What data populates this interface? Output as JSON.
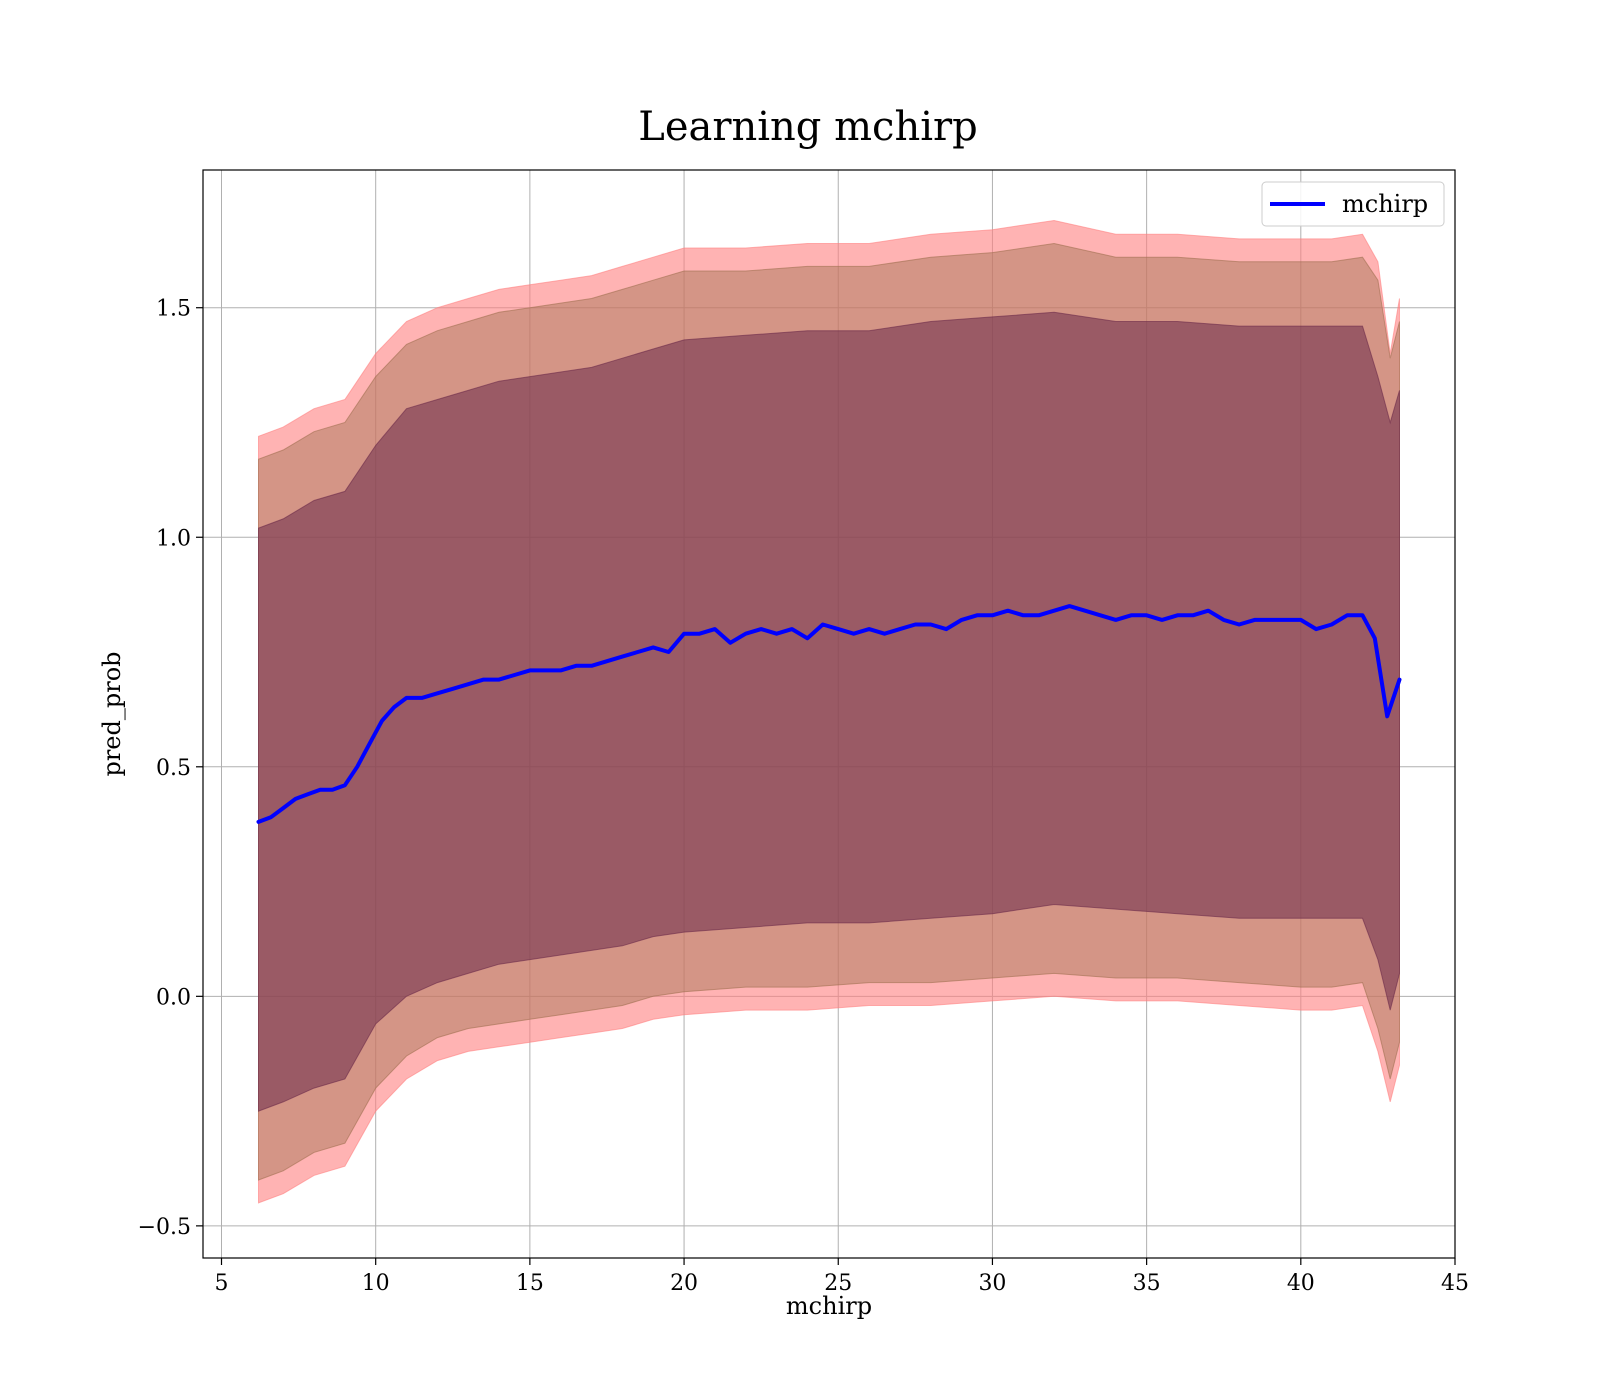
{
  "chart_data": {
    "type": "line",
    "title": "Learning mchirp",
    "xlabel": "mchirp",
    "ylabel": "pred_prob",
    "xlim": [
      4.4,
      45
    ],
    "ylim": [
      -0.57,
      1.8
    ],
    "xticks": [
      5,
      10,
      15,
      20,
      25,
      30,
      35,
      40,
      45
    ],
    "xtick_labels": [
      "5",
      "10",
      "15",
      "20",
      "25",
      "30",
      "35",
      "40",
      "45"
    ],
    "yticks": [
      -0.5,
      0.0,
      0.5,
      1.0,
      1.5
    ],
    "ytick_labels": [
      "−0.5",
      "0.0",
      "0.5",
      "1.0",
      "1.5"
    ],
    "grid": true,
    "legend": {
      "position": "upper right",
      "entries": [
        "mchirp"
      ]
    },
    "series": [
      {
        "name": "mchirp",
        "color": "#0000ff",
        "x": [
          6.2,
          6.6,
          7.0,
          7.4,
          7.8,
          8.2,
          8.6,
          9.0,
          9.4,
          9.8,
          10.2,
          10.6,
          11.0,
          11.5,
          12.0,
          12.5,
          13.0,
          13.5,
          14.0,
          14.5,
          15.0,
          15.5,
          16.0,
          16.5,
          17.0,
          17.5,
          18.0,
          18.5,
          19.0,
          19.5,
          20.0,
          20.5,
          21.0,
          21.5,
          22.0,
          22.5,
          23.0,
          23.5,
          24.0,
          24.5,
          25.0,
          25.5,
          26.0,
          26.5,
          27.0,
          27.5,
          28.0,
          28.5,
          29.0,
          29.5,
          30.0,
          30.5,
          31.0,
          31.5,
          32.0,
          32.5,
          33.0,
          33.5,
          34.0,
          34.5,
          35.0,
          35.5,
          36.0,
          36.5,
          37.0,
          37.5,
          38.0,
          38.5,
          39.0,
          39.5,
          40.0,
          40.5,
          41.0,
          41.5,
          42.0,
          42.4,
          42.8,
          43.2
        ],
        "y": [
          0.38,
          0.39,
          0.41,
          0.43,
          0.44,
          0.45,
          0.45,
          0.46,
          0.5,
          0.55,
          0.6,
          0.63,
          0.65,
          0.65,
          0.66,
          0.67,
          0.68,
          0.69,
          0.69,
          0.7,
          0.71,
          0.71,
          0.71,
          0.72,
          0.72,
          0.73,
          0.74,
          0.75,
          0.76,
          0.75,
          0.79,
          0.79,
          0.8,
          0.77,
          0.79,
          0.8,
          0.79,
          0.8,
          0.78,
          0.81,
          0.8,
          0.79,
          0.8,
          0.79,
          0.8,
          0.81,
          0.81,
          0.8,
          0.82,
          0.83,
          0.83,
          0.84,
          0.83,
          0.83,
          0.84,
          0.85,
          0.84,
          0.83,
          0.82,
          0.83,
          0.83,
          0.82,
          0.83,
          0.83,
          0.84,
          0.82,
          0.81,
          0.82,
          0.82,
          0.82,
          0.82,
          0.8,
          0.81,
          0.83,
          0.83,
          0.78,
          0.61,
          0.69
        ]
      }
    ],
    "bands": [
      {
        "color": "#ff8080",
        "opacity": 0.6,
        "x": [
          6.2,
          7.0,
          8.0,
          9.0,
          10.0,
          11.0,
          12.0,
          13.0,
          14.0,
          15.0,
          16.0,
          17.0,
          18.0,
          19.0,
          20.0,
          22.0,
          24.0,
          26.0,
          28.0,
          30.0,
          32.0,
          34.0,
          36.0,
          38.0,
          40.0,
          41.0,
          42.0,
          42.5,
          42.9,
          43.2
        ],
        "upper": [
          1.22,
          1.24,
          1.28,
          1.3,
          1.4,
          1.47,
          1.5,
          1.52,
          1.54,
          1.55,
          1.56,
          1.57,
          1.59,
          1.61,
          1.63,
          1.63,
          1.64,
          1.64,
          1.66,
          1.67,
          1.69,
          1.66,
          1.66,
          1.65,
          1.65,
          1.65,
          1.66,
          1.6,
          1.4,
          1.52
        ],
        "lower": [
          -0.45,
          -0.43,
          -0.39,
          -0.37,
          -0.25,
          -0.18,
          -0.14,
          -0.12,
          -0.11,
          -0.1,
          -0.09,
          -0.08,
          -0.07,
          -0.05,
          -0.04,
          -0.03,
          -0.03,
          -0.02,
          -0.02,
          -0.01,
          0.0,
          -0.01,
          -0.01,
          -0.02,
          -0.03,
          -0.03,
          -0.02,
          -0.12,
          -0.23,
          -0.15
        ]
      },
      {
        "color": "#a07050",
        "opacity": 0.45,
        "x": [
          6.2,
          7.0,
          8.0,
          9.0,
          10.0,
          11.0,
          12.0,
          13.0,
          14.0,
          15.0,
          16.0,
          17.0,
          18.0,
          19.0,
          20.0,
          22.0,
          24.0,
          26.0,
          28.0,
          30.0,
          32.0,
          34.0,
          36.0,
          38.0,
          40.0,
          41.0,
          42.0,
          42.5,
          42.9,
          43.2
        ],
        "upper": [
          1.17,
          1.19,
          1.23,
          1.25,
          1.35,
          1.42,
          1.45,
          1.47,
          1.49,
          1.5,
          1.51,
          1.52,
          1.54,
          1.56,
          1.58,
          1.58,
          1.59,
          1.59,
          1.61,
          1.62,
          1.64,
          1.61,
          1.61,
          1.6,
          1.6,
          1.6,
          1.61,
          1.56,
          1.39,
          1.47
        ],
        "lower": [
          -0.4,
          -0.38,
          -0.34,
          -0.32,
          -0.2,
          -0.13,
          -0.09,
          -0.07,
          -0.06,
          -0.05,
          -0.04,
          -0.03,
          -0.02,
          0.0,
          0.01,
          0.02,
          0.02,
          0.03,
          0.03,
          0.04,
          0.05,
          0.04,
          0.04,
          0.03,
          0.02,
          0.02,
          0.03,
          -0.07,
          -0.18,
          -0.1
        ]
      },
      {
        "color": "#6a2a4a",
        "opacity": 0.55,
        "x": [
          6.2,
          7.0,
          8.0,
          9.0,
          10.0,
          11.0,
          12.0,
          13.0,
          14.0,
          15.0,
          16.0,
          17.0,
          18.0,
          19.0,
          20.0,
          22.0,
          24.0,
          26.0,
          28.0,
          30.0,
          32.0,
          34.0,
          36.0,
          38.0,
          40.0,
          41.0,
          42.0,
          42.5,
          42.9,
          43.2
        ],
        "upper": [
          1.02,
          1.04,
          1.08,
          1.1,
          1.2,
          1.28,
          1.3,
          1.32,
          1.34,
          1.35,
          1.36,
          1.37,
          1.39,
          1.41,
          1.43,
          1.44,
          1.45,
          1.45,
          1.47,
          1.48,
          1.49,
          1.47,
          1.47,
          1.46,
          1.46,
          1.46,
          1.46,
          1.35,
          1.25,
          1.32
        ],
        "lower": [
          -0.25,
          -0.23,
          -0.2,
          -0.18,
          -0.06,
          0.0,
          0.03,
          0.05,
          0.07,
          0.08,
          0.09,
          0.1,
          0.11,
          0.13,
          0.14,
          0.15,
          0.16,
          0.16,
          0.17,
          0.18,
          0.2,
          0.19,
          0.18,
          0.17,
          0.17,
          0.17,
          0.17,
          0.08,
          -0.03,
          0.05
        ]
      }
    ]
  }
}
